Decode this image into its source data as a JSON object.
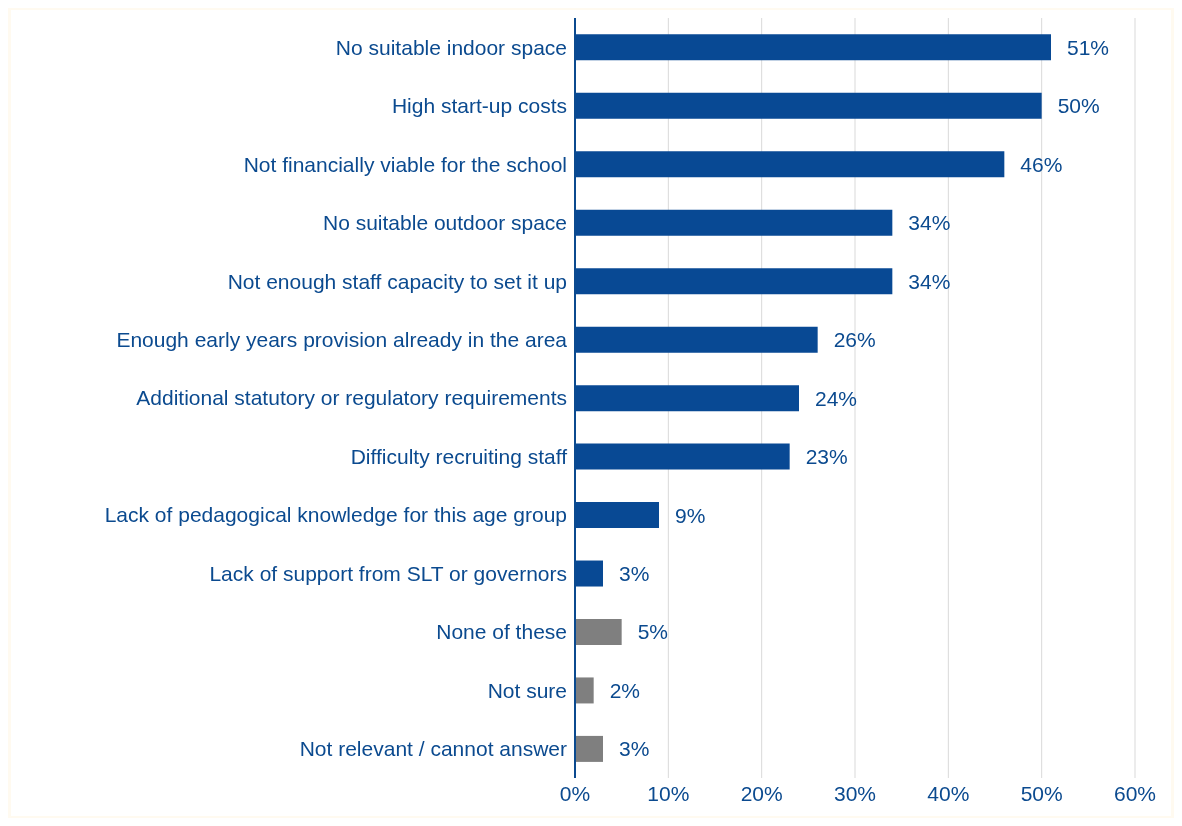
{
  "chart_data": {
    "type": "bar",
    "orientation": "horizontal",
    "categories": [
      "No suitable indoor space",
      "High start-up costs",
      "Not financially viable for the school",
      "No suitable outdoor space",
      "Not enough staff capacity to set it up",
      "Enough early years provision already in the area",
      "Additional statutory or regulatory requirements",
      "Difficulty recruiting staff",
      "Lack of pedagogical knowledge for this age group",
      "Lack of support from SLT or governors",
      "None of these",
      "Not sure",
      "Not relevant / cannot answer"
    ],
    "values": [
      51,
      50,
      46,
      34,
      34,
      26,
      24,
      23,
      9,
      3,
      5,
      2,
      3
    ],
    "value_labels": [
      "51%",
      "50%",
      "46%",
      "34%",
      "34%",
      "26%",
      "24%",
      "23%",
      "9%",
      "3%",
      "5%",
      "2%",
      "3%"
    ],
    "colors": [
      "#084994",
      "#084994",
      "#084994",
      "#084994",
      "#084994",
      "#084994",
      "#084994",
      "#084994",
      "#084994",
      "#084994",
      "#7f7f7f",
      "#7f7f7f",
      "#7f7f7f"
    ],
    "xlim": [
      0,
      60
    ],
    "xticks": [
      {
        "value": 0,
        "label": "0%"
      },
      {
        "value": 10,
        "label": "10%"
      },
      {
        "value": 20,
        "label": "20%"
      },
      {
        "value": 30,
        "label": "30%"
      },
      {
        "value": 40,
        "label": "40%"
      },
      {
        "value": 50,
        "label": "50%"
      },
      {
        "value": 60,
        "label": "60%"
      }
    ],
    "grid": "x"
  }
}
